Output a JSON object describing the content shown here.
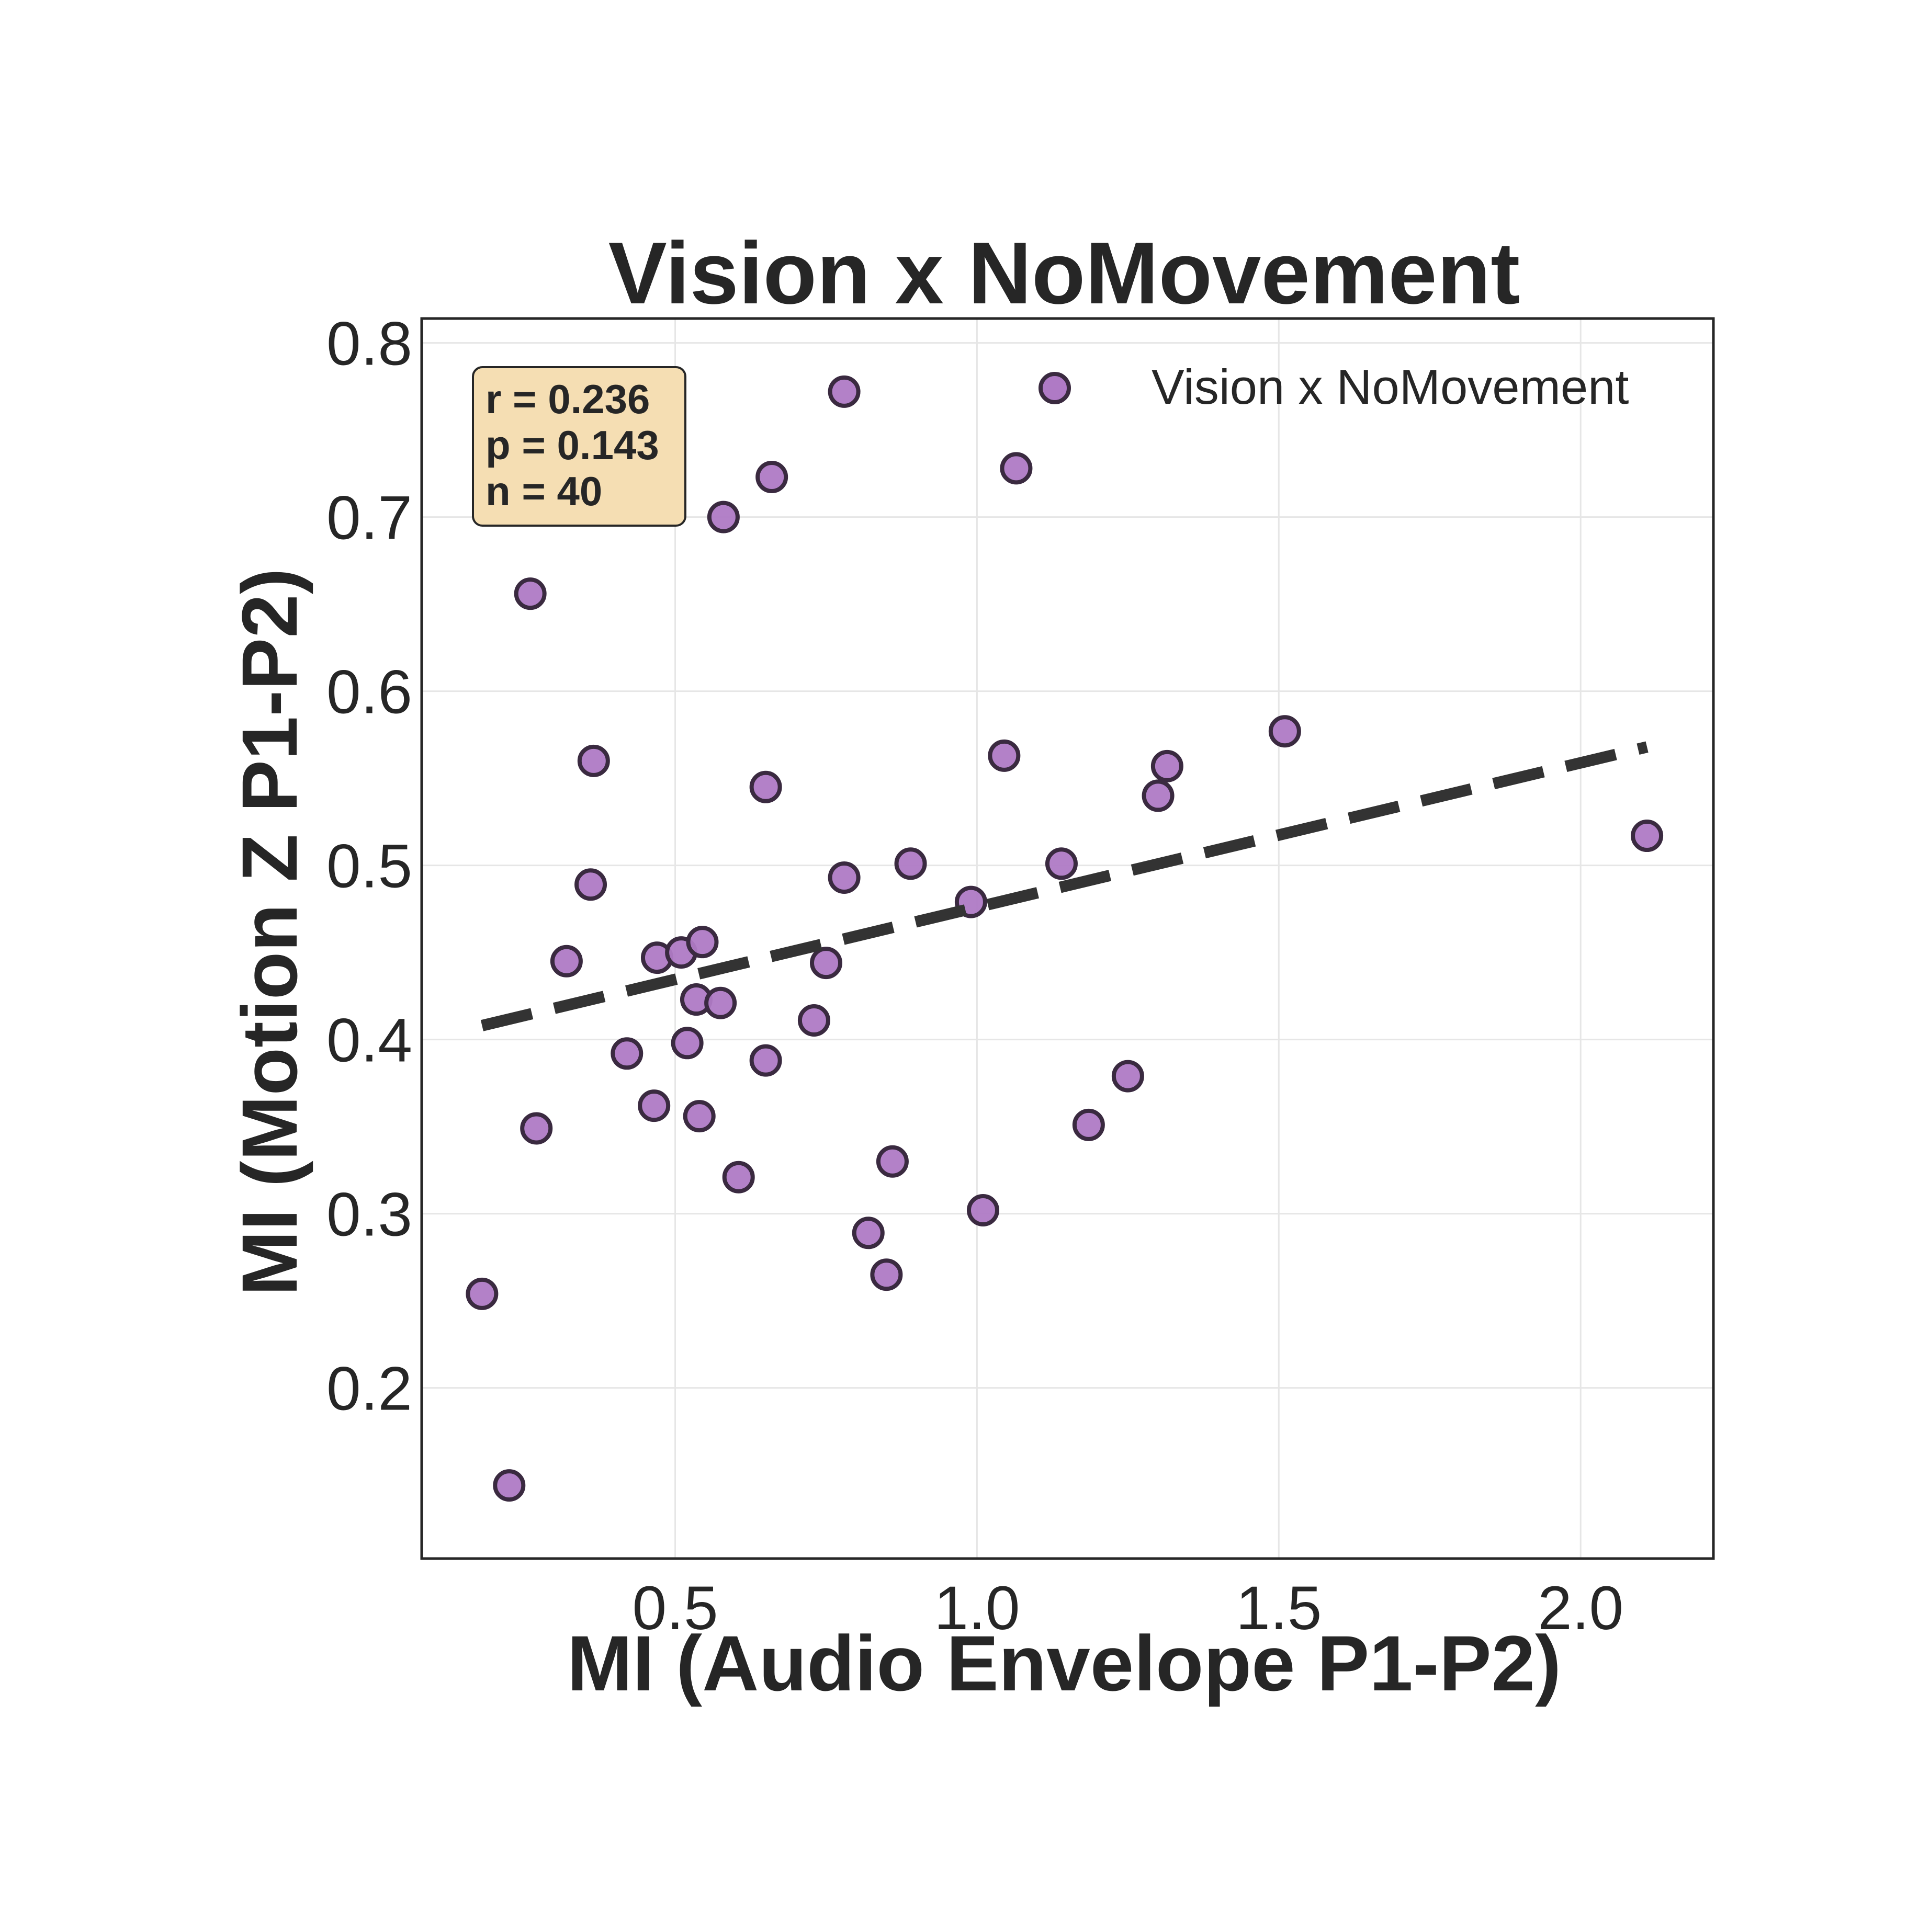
{
  "chart_data": {
    "type": "scatter",
    "title": "Vision x NoMovement",
    "xlabel": "MI (Audio Envelope P1-P2)",
    "ylabel": "MI (Motion Z P1-P2)",
    "xlim": [
      0.08,
      2.22
    ],
    "ylim": [
      0.102,
      0.814
    ],
    "xticks": [
      0.5,
      1.0,
      1.5,
      2.0
    ],
    "xtick_labels": [
      "0.5",
      "1.0",
      "1.5",
      "2.0"
    ],
    "yticks": [
      0.2,
      0.3,
      0.4,
      0.5,
      0.6,
      0.7,
      0.8
    ],
    "ytick_labels": [
      "0.2",
      "0.3",
      "0.4",
      "0.5",
      "0.6",
      "0.7",
      "0.8"
    ],
    "grid": true,
    "legend_position": "top-right",
    "series": [
      {
        "name": "Vision x NoMovement",
        "color": "#af7ac5",
        "edge_color": "#3a2a40",
        "points": [
          {
            "x": 0.18,
            "y": 0.254
          },
          {
            "x": 0.225,
            "y": 0.144
          },
          {
            "x": 0.26,
            "y": 0.656
          },
          {
            "x": 0.27,
            "y": 0.349
          },
          {
            "x": 0.32,
            "y": 0.445
          },
          {
            "x": 0.36,
            "y": 0.489
          },
          {
            "x": 0.365,
            "y": 0.56
          },
          {
            "x": 0.42,
            "y": 0.392
          },
          {
            "x": 0.465,
            "y": 0.362
          },
          {
            "x": 0.47,
            "y": 0.447
          },
          {
            "x": 0.51,
            "y": 0.45
          },
          {
            "x": 0.52,
            "y": 0.398
          },
          {
            "x": 0.535,
            "y": 0.423
          },
          {
            "x": 0.54,
            "y": 0.356
          },
          {
            "x": 0.545,
            "y": 0.456
          },
          {
            "x": 0.575,
            "y": 0.421
          },
          {
            "x": 0.58,
            "y": 0.7
          },
          {
            "x": 0.605,
            "y": 0.321
          },
          {
            "x": 0.65,
            "y": 0.545
          },
          {
            "x": 0.65,
            "y": 0.388
          },
          {
            "x": 0.66,
            "y": 0.723
          },
          {
            "x": 0.73,
            "y": 0.411
          },
          {
            "x": 0.75,
            "y": 0.444
          },
          {
            "x": 0.78,
            "y": 0.772
          },
          {
            "x": 0.78,
            "y": 0.493
          },
          {
            "x": 0.82,
            "y": 0.289
          },
          {
            "x": 0.85,
            "y": 0.265
          },
          {
            "x": 0.86,
            "y": 0.33
          },
          {
            "x": 0.89,
            "y": 0.501
          },
          {
            "x": 0.99,
            "y": 0.479
          },
          {
            "x": 1.01,
            "y": 0.302
          },
          {
            "x": 1.045,
            "y": 0.563
          },
          {
            "x": 1.065,
            "y": 0.728
          },
          {
            "x": 1.14,
            "y": 0.501
          },
          {
            "x": 1.185,
            "y": 0.351
          },
          {
            "x": 1.25,
            "y": 0.379
          },
          {
            "x": 1.3,
            "y": 0.54
          },
          {
            "x": 1.315,
            "y": 0.557
          },
          {
            "x": 1.51,
            "y": 0.577
          },
          {
            "x": 2.11,
            "y": 0.517
          }
        ]
      }
    ],
    "regression_line": {
      "x": [
        0.18,
        2.11
      ],
      "y": [
        0.408,
        0.568
      ],
      "style": "dashed",
      "color": "#333333"
    },
    "stats_box": {
      "lines": [
        "r = 0.236",
        "p = 0.143",
        "n = 40"
      ],
      "background": "#f5deb3"
    }
  }
}
